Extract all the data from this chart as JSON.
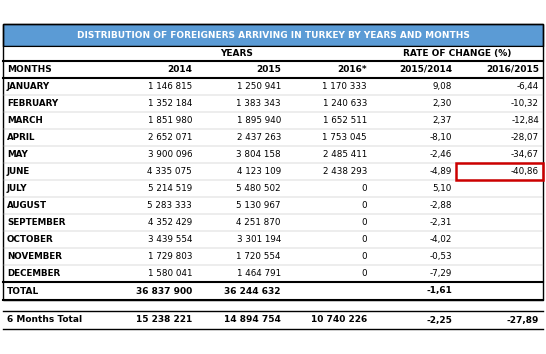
{
  "title": "DISTRIBUTION OF FOREIGNERS ARRIVING IN TURKEY BY YEARS AND MONTHS",
  "col_headers": [
    "MONTHS",
    "2014",
    "2015",
    "2016*",
    "2015/2014",
    "2016/2015"
  ],
  "rows": [
    [
      "JANUARY",
      "1 146 815",
      "1 250 941",
      "1 170 333",
      "9,08",
      "-6,44"
    ],
    [
      "FEBRUARY",
      "1 352 184",
      "1 383 343",
      "1 240 633",
      "2,30",
      "-10,32"
    ],
    [
      "MARCH",
      "1 851 980",
      "1 895 940",
      "1 652 511",
      "2,37",
      "-12,84"
    ],
    [
      "APRIL",
      "2 652 071",
      "2 437 263",
      "1 753 045",
      "-8,10",
      "-28,07"
    ],
    [
      "MAY",
      "3 900 096",
      "3 804 158",
      "2 485 411",
      "-2,46",
      "-34,67"
    ],
    [
      "JUNE",
      "4 335 075",
      "4 123 109",
      "2 438 293",
      "-4,89",
      "-40,86"
    ],
    [
      "JULY",
      "5 214 519",
      "5 480 502",
      "0",
      "5,10",
      ""
    ],
    [
      "AUGUST",
      "5 283 333",
      "5 130 967",
      "0",
      "-2,88",
      ""
    ],
    [
      "SEPTEMBER",
      "4 352 429",
      "4 251 870",
      "0",
      "-2,31",
      ""
    ],
    [
      "OCTOBER",
      "3 439 554",
      "3 301 194",
      "0",
      "-4,02",
      ""
    ],
    [
      "NOVEMBER",
      "1 729 803",
      "1 720 554",
      "0",
      "-0,53",
      ""
    ],
    [
      "DECEMBER",
      "1 580 041",
      "1 464 791",
      "0",
      "-7,29",
      ""
    ]
  ],
  "total_row": [
    "TOTAL",
    "36 837 900",
    "36 244 632",
    "",
    "-1,61",
    ""
  ],
  "sixmonth_row": [
    "6 Months Total",
    "15 238 221",
    "14 894 754",
    "10 740 226",
    "-2,25",
    "-27,89"
  ],
  "title_bg": "#5b9bd5",
  "title_color": "#ffffff",
  "highlight_border_color": "#cc0000",
  "highlight_row": 5,
  "highlight_col": 5
}
